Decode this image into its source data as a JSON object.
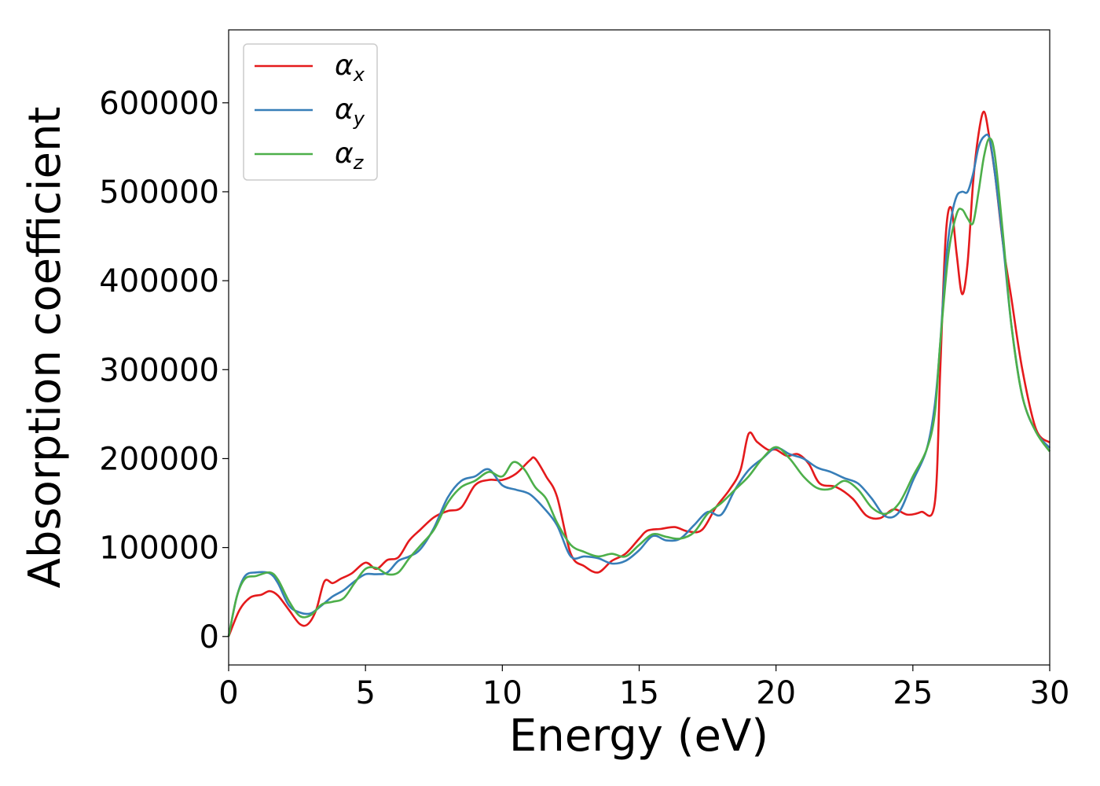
{
  "chart_data": {
    "type": "line",
    "xlabel": "Energy (eV)",
    "ylabel": "Absorption coefficient",
    "xlim": [
      0,
      30
    ],
    "ylim": [
      -32000,
      682000
    ],
    "x_ticks": [
      0,
      5,
      10,
      15,
      20,
      25,
      30
    ],
    "y_ticks": [
      0,
      100000,
      200000,
      300000,
      400000,
      500000,
      600000
    ],
    "grid": false,
    "legend_position": "top-left",
    "series": [
      {
        "name": "αx",
        "label_base": "α",
        "label_sub": "x",
        "color": "#e41a1c",
        "x": [
          0,
          0.4,
          0.8,
          1.2,
          1.5,
          1.8,
          2.2,
          2.6,
          2.9,
          3.2,
          3.5,
          3.8,
          4.1,
          4.5,
          5.0,
          5.4,
          5.8,
          6.2,
          6.6,
          7.0,
          7.5,
          8.0,
          8.5,
          9.0,
          9.5,
          10.0,
          10.5,
          11.0,
          11.2,
          11.6,
          12.0,
          12.5,
          13.0,
          13.5,
          14.0,
          14.5,
          15.0,
          15.3,
          15.8,
          16.3,
          16.8,
          17.3,
          17.8,
          18.3,
          18.7,
          19.0,
          19.3,
          19.7,
          20.0,
          20.4,
          20.8,
          21.2,
          21.6,
          22.2,
          22.8,
          23.3,
          23.8,
          24.3,
          24.8,
          25.3,
          25.8,
          26.0,
          26.2,
          26.4,
          26.6,
          26.8,
          27.0,
          27.2,
          27.4,
          27.6,
          27.8,
          28.0,
          28.3,
          28.6,
          29.0,
          29.5,
          30.0
        ],
        "y": [
          0,
          30000,
          44000,
          47000,
          51000,
          46000,
          30000,
          14000,
          14000,
          30000,
          62000,
          60000,
          65000,
          71000,
          83000,
          76000,
          86000,
          89000,
          108000,
          120000,
          134000,
          141000,
          145000,
          170000,
          176000,
          176000,
          183000,
          198000,
          200000,
          180000,
          157000,
          93000,
          79000,
          72000,
          85000,
          93000,
          110000,
          119000,
          121000,
          123000,
          118000,
          120000,
          145000,
          165000,
          187000,
          228000,
          219000,
          210000,
          210000,
          203000,
          205000,
          194000,
          172000,
          168000,
          155000,
          136000,
          133000,
          143000,
          137000,
          140000,
          150000,
          300000,
          450000,
          482000,
          430000,
          385000,
          420000,
          510000,
          565000,
          590000,
          560000,
          520000,
          440000,
          380000,
          300000,
          233000,
          218000
        ]
      },
      {
        "name": "αy",
        "label_base": "α",
        "label_sub": "y",
        "color": "#377eb8",
        "x": [
          0,
          0.3,
          0.6,
          1.0,
          1.5,
          1.8,
          2.2,
          2.6,
          3.0,
          3.4,
          3.8,
          4.2,
          4.6,
          5.0,
          5.4,
          5.8,
          6.2,
          6.6,
          7.0,
          7.5,
          8.0,
          8.5,
          9.0,
          9.5,
          10.0,
          10.5,
          11.0,
          11.5,
          12.0,
          12.5,
          13.0,
          13.5,
          14.0,
          14.5,
          15.0,
          15.5,
          16.0,
          16.5,
          17.0,
          17.5,
          18.0,
          18.5,
          19.0,
          19.5,
          20.0,
          20.5,
          21.0,
          21.5,
          22.0,
          22.5,
          23.0,
          23.5,
          24.0,
          24.5,
          25.0,
          25.5,
          25.8,
          26.0,
          26.2,
          26.4,
          26.6,
          26.8,
          27.0,
          27.2,
          27.4,
          27.6,
          27.8,
          28.0,
          28.3,
          28.6,
          29.0,
          29.5,
          30.0
        ],
        "y": [
          0,
          45000,
          68000,
          72000,
          71000,
          60000,
          35000,
          27000,
          26000,
          35000,
          45000,
          52000,
          62000,
          70000,
          70000,
          72000,
          85000,
          90000,
          98000,
          122000,
          156000,
          175000,
          180000,
          188000,
          170000,
          165000,
          160000,
          145000,
          125000,
          90000,
          90000,
          88000,
          82000,
          85000,
          97000,
          113000,
          108000,
          110000,
          125000,
          140000,
          137000,
          165000,
          187000,
          200000,
          212000,
          205000,
          200000,
          190000,
          185000,
          178000,
          172000,
          155000,
          135000,
          140000,
          175000,
          210000,
          260000,
          330000,
          420000,
          470000,
          495000,
          500000,
          500000,
          520000,
          550000,
          562000,
          560000,
          520000,
          440000,
          350000,
          270000,
          230000,
          212000
        ]
      },
      {
        "name": "αz",
        "label_base": "α",
        "label_sub": "z",
        "color": "#4daf4a",
        "x": [
          0,
          0.3,
          0.6,
          1.0,
          1.5,
          1.8,
          2.2,
          2.6,
          3.0,
          3.4,
          3.8,
          4.2,
          4.6,
          5.0,
          5.4,
          5.8,
          6.2,
          6.6,
          7.0,
          7.5,
          8.0,
          8.5,
          9.0,
          9.5,
          10.0,
          10.4,
          10.8,
          11.2,
          11.6,
          12.0,
          12.5,
          13.0,
          13.5,
          14.0,
          14.5,
          15.0,
          15.5,
          16.0,
          16.5,
          17.0,
          17.5,
          18.0,
          18.5,
          19.0,
          19.5,
          20.0,
          20.5,
          21.0,
          21.5,
          22.0,
          22.5,
          23.0,
          23.5,
          24.0,
          24.5,
          25.0,
          25.5,
          25.8,
          26.0,
          26.3,
          26.6,
          26.8,
          27.0,
          27.2,
          27.4,
          27.6,
          27.8,
          28.0,
          28.3,
          28.6,
          29.0,
          29.5,
          30.0
        ],
        "y": [
          0,
          45000,
          65000,
          68000,
          72000,
          64000,
          40000,
          23000,
          24000,
          36000,
          39000,
          43000,
          60000,
          76000,
          77000,
          70000,
          72000,
          88000,
          102000,
          120000,
          150000,
          168000,
          175000,
          185000,
          180000,
          196000,
          188000,
          168000,
          155000,
          128000,
          103000,
          95000,
          90000,
          93000,
          90000,
          103000,
          115000,
          112000,
          110000,
          117000,
          138000,
          150000,
          165000,
          180000,
          200000,
          213000,
          200000,
          180000,
          167000,
          166000,
          175000,
          165000,
          145000,
          138000,
          150000,
          180000,
          210000,
          250000,
          330000,
          430000,
          475000,
          480000,
          470000,
          465000,
          500000,
          540000,
          560000,
          540000,
          450000,
          350000,
          270000,
          230000,
          208000
        ]
      }
    ]
  }
}
